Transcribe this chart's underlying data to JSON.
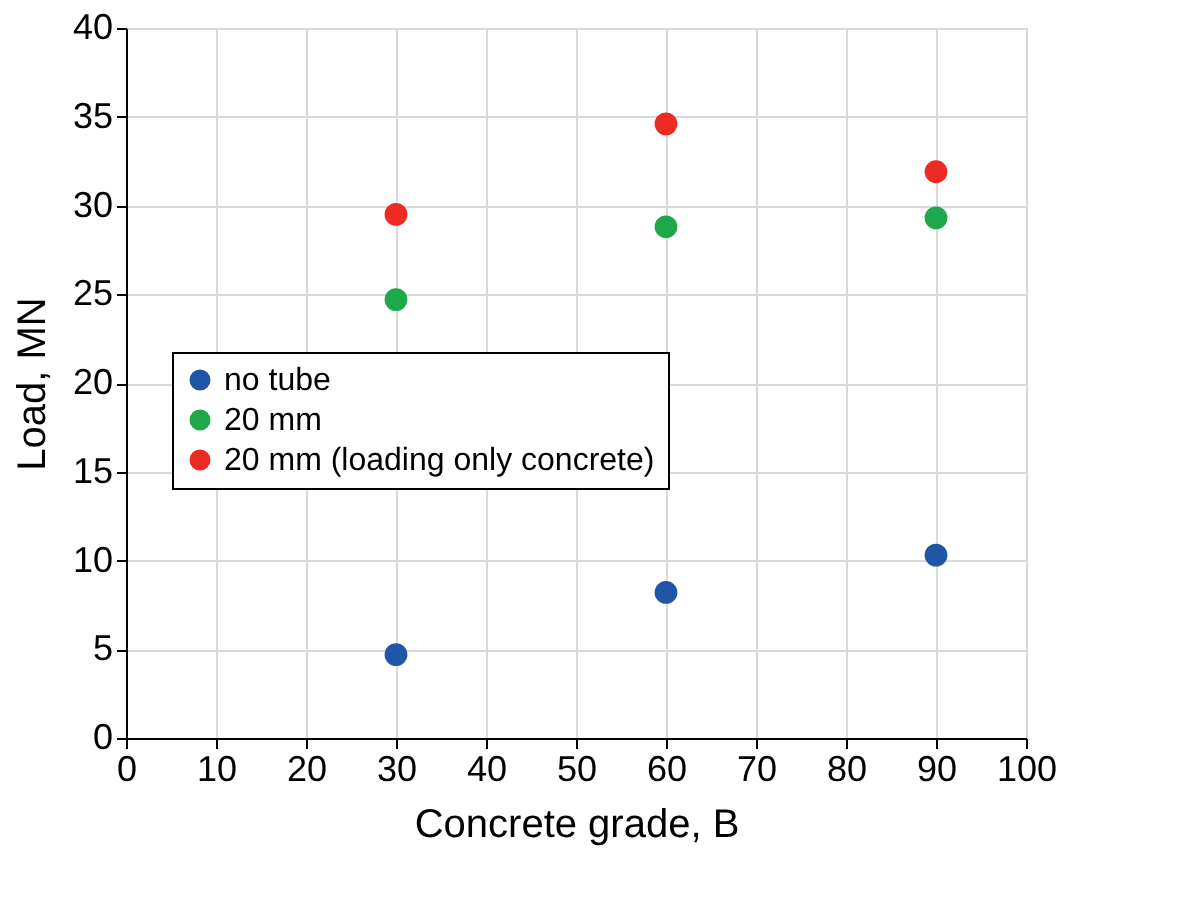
{
  "chart_data": {
    "type": "scatter",
    "xlabel": "Concrete grade, B",
    "ylabel": "Load, MN",
    "x": [
      30,
      60,
      90
    ],
    "series": [
      {
        "name": "no tube",
        "color": "#1f56a5",
        "values": [
          4.7,
          8.2,
          10.3
        ]
      },
      {
        "name": "20 mm",
        "color": "#1ea84a",
        "values": [
          24.7,
          28.8,
          29.3
        ]
      },
      {
        "name": "20 mm (loading only concrete)",
        "color": "#ee2a24",
        "values": [
          29.5,
          34.6,
          31.9
        ]
      }
    ],
    "xlim": [
      0,
      100
    ],
    "xticks": [
      0,
      10,
      20,
      30,
      40,
      50,
      60,
      70,
      80,
      90,
      100
    ],
    "ylim": [
      0,
      40
    ],
    "yticks": [
      0,
      5,
      10,
      15,
      20,
      25,
      30,
      35,
      40
    ],
    "grid": true,
    "legend": "left",
    "marker": "circle"
  }
}
